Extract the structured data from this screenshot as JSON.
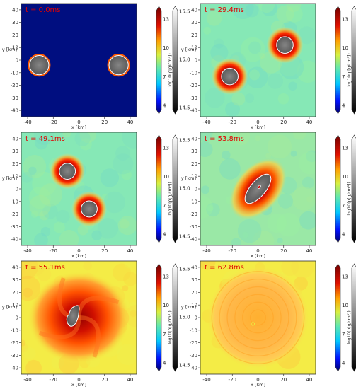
{
  "chart_data": [
    {
      "type": "heatmap",
      "panel": "t0",
      "time_label": "t = 0.0ms",
      "xlabel": "x [km]",
      "ylabel": "y [km]",
      "xlim": [
        -45,
        45
      ],
      "ylim": [
        -45,
        45
      ],
      "xticks": [
        -40,
        -20,
        0,
        20,
        40
      ],
      "yticks": [
        -40,
        -30,
        -20,
        -10,
        0,
        10,
        20,
        30,
        40
      ],
      "background": "#000e80",
      "stars": [
        {
          "x": -31,
          "y": -4,
          "r": 7.5
        },
        {
          "x": 31,
          "y": -4,
          "r": 7.5
        }
      ],
      "envelope": "none"
    },
    {
      "type": "heatmap",
      "panel": "t294",
      "time_label": "t = 29.4ms",
      "xlabel": "x [km]",
      "ylabel": "y [km]",
      "xlim": [
        -45,
        45
      ],
      "ylim": [
        -45,
        45
      ],
      "xticks": [
        -40,
        -20,
        0,
        20,
        40
      ],
      "yticks": [
        -40,
        -30,
        -20,
        -10,
        0,
        10,
        20,
        30,
        40
      ],
      "background": "#86e8b6",
      "stars": [
        {
          "x": -22,
          "y": -13,
          "r": 6.5
        },
        {
          "x": 21,
          "y": 12,
          "r": 6.5
        }
      ],
      "envelope": "halo"
    },
    {
      "type": "heatmap",
      "panel": "t491",
      "time_label": "t = 49.1ms",
      "xlabel": "x [km]",
      "ylabel": "y [km]",
      "xlim": [
        -45,
        45
      ],
      "ylim": [
        -45,
        45
      ],
      "xticks": [
        -40,
        -20,
        0,
        20,
        40
      ],
      "yticks": [
        -40,
        -30,
        -20,
        -10,
        0,
        10,
        20,
        30,
        40
      ],
      "background": "#86e8b6",
      "stars": [
        {
          "x": -9,
          "y": 14,
          "r": 6.3
        },
        {
          "x": 8,
          "y": -16,
          "r": 6.3
        }
      ],
      "envelope": "halo"
    },
    {
      "type": "heatmap",
      "panel": "t538",
      "time_label": "t = 53.8ms",
      "xlabel": "x [km]",
      "ylabel": "y [km]",
      "xlim": [
        -45,
        45
      ],
      "ylim": [
        -45,
        45
      ],
      "xticks": [
        -40,
        -20,
        0,
        20,
        40
      ],
      "yticks": [
        -40,
        -30,
        -20,
        -10,
        0,
        10,
        20,
        30,
        40
      ],
      "background": "#9ae8a6",
      "stars": [
        {
          "x": 0,
          "y": 0,
          "r": 6.5
        }
      ],
      "envelope": "merger"
    },
    {
      "type": "heatmap",
      "panel": "t551",
      "time_label": "t = 55.1ms",
      "xlabel": "x [km]",
      "ylabel": "y [km]",
      "xlim": [
        -45,
        45
      ],
      "ylim": [
        -45,
        45
      ],
      "xticks": [
        -40,
        -20,
        0,
        20,
        40
      ],
      "yticks": [
        -40,
        -30,
        -20,
        -10,
        0,
        10,
        20,
        30,
        40
      ],
      "background": "#f4ec46",
      "stars": [
        {
          "x": -2,
          "y": -2,
          "r": 7
        }
      ],
      "envelope": "remnant"
    },
    {
      "type": "heatmap",
      "panel": "t628",
      "time_label": "t = 62.8ms",
      "xlabel": "x [km]",
      "ylabel": "y [km]",
      "xlim": [
        -45,
        45
      ],
      "ylim": [
        -45,
        45
      ],
      "xticks": [
        -40,
        -20,
        0,
        20,
        40
      ],
      "yticks": [
        -40,
        -30,
        -20,
        -10,
        0,
        10,
        20,
        30,
        40
      ],
      "background": "#f4ec46",
      "stars": [],
      "envelope": "disk"
    }
  ],
  "colorbar": {
    "left_ticks": [
      "13",
      "10",
      "7",
      "4"
    ],
    "right_ticks": [
      "15.5",
      "15.0",
      "14.5"
    ],
    "label": "log10(ρ[g/cm³])"
  }
}
